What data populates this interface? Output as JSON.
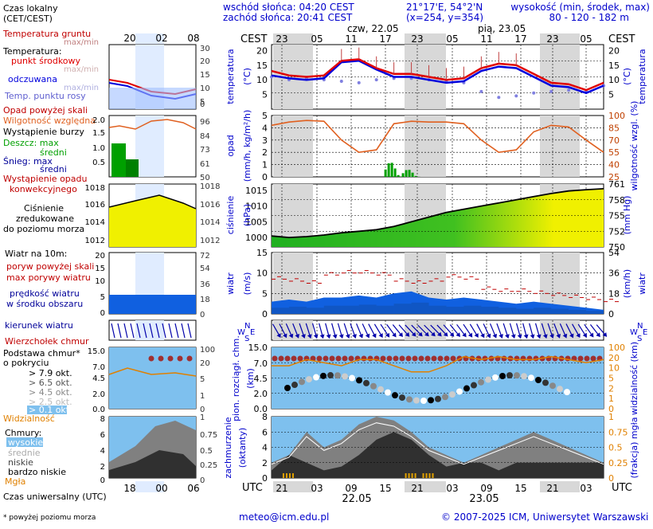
{
  "header": {
    "sunrise": "wschód słońca: 04:20 CEST",
    "sunset": "zachód słońca: 20:41 CEST",
    "coords": "21°17'E, 54°2'N",
    "grid": "(x=254, y=354)",
    "elev_title": "wysokość (min, środek, max)",
    "elev_values": "80 - 120 - 182 m",
    "cest": "CEST",
    "day1": "czw, 22.05",
    "day2": "pią, 23.05",
    "hours_top": [
      "23",
      "05",
      "11",
      "17",
      "23",
      "05",
      "11",
      "17",
      "23",
      "05"
    ],
    "utc": "UTC",
    "hours_bottom": [
      "21",
      "03",
      "09",
      "15",
      "21",
      "03",
      "09",
      "15",
      "21",
      "03"
    ],
    "date1": "22.05",
    "date2": "23.05"
  },
  "legend": {
    "local_time": "Czas lokalny",
    "local_time2": "(CET/CEST)",
    "legend_hours_top": [
      "20",
      "02",
      "08"
    ],
    "soil_temp": "Temperatura gruntu",
    "maxmin": "max/min",
    "temp": "Temperatura:",
    "mid": "punkt środkowy",
    "maxmin2": "max/min",
    "feels": "odczuwana",
    "maxmin3": "max/min",
    "dew": "Temp. punktu rosy",
    "precip_above": "Opad powyżej skali",
    "humidity": "Wilgotność względna",
    "storm": "Wystąpienie burzy",
    "rain_max": "Deszcz: max",
    "rain_mid": "średni",
    "snow_max": "Śnieg:  max",
    "snow_mid": "średni",
    "precip_conv1": "Wystąpienie opadu",
    "precip_conv2": "konwekcyjnego",
    "pressure1": "Ciśnienie",
    "pressure2": "zredukowane",
    "pressure3": "do poziomu morza",
    "wind10": "Wiatr na 10m:",
    "gust_above": "poryw powyżej skali",
    "gust_max": "max porywy wiatru",
    "wind_speed1": "prędkość wiatru",
    "wind_speed2": "w środku obszaru",
    "wind_dir": "kierunek wiatru",
    "cloud_top": "Wierzchołek chmur",
    "cloud_base1": "Podstawa chmur*",
    "cloud_base2": "o pokryciu",
    "okt79": "> 7.9 okt.",
    "okt65": "> 6.5 okt.",
    "okt45": "> 4.5 okt.",
    "okt25": "> 2.5 okt.",
    "okt01": "> 0.1 okt.",
    "visibility": "Widzialność",
    "clouds": "Chmury:",
    "high": "wysokie",
    "mid_cl": "średnie",
    "low": "niskie",
    "very_low": "bardzo niskie",
    "fog": "Mgła",
    "utc_time": "Czas uniwersalny (UTC)",
    "legend_hours_bottom": [
      "18",
      "00",
      "06"
    ],
    "footnote": "* powyżej poziomu morza"
  },
  "footer": {
    "email": "meteo@icm.edu.pl",
    "copyright": "© 2007-2025 ICM, Uniwersytet Warszawski"
  },
  "colors": {
    "temp": "#e00000",
    "feels": "#0000dd",
    "dew": "#8080e0",
    "rain": "#00a000",
    "humidity": "#e06020",
    "pressure_fill": "#f0f000",
    "wind": "#1060e0",
    "cloud_sky": "#7ec0ee",
    "night": "#d8d8d8"
  },
  "chart_data": [
    {
      "type": "line",
      "title": "temperatura",
      "ylabel": "(°C)",
      "ylim": [
        0,
        22
      ],
      "yticks": [
        "5",
        "10",
        "15",
        "20"
      ],
      "x_hours_utc": [
        21,
        0,
        3,
        6,
        9,
        12,
        15,
        18,
        21,
        0,
        3,
        6,
        9,
        12,
        15,
        18,
        21,
        0,
        3,
        6
      ],
      "series": [
        {
          "name": "punkt środkowy",
          "values": [
            13,
            11.5,
            11,
            11.5,
            16.5,
            17,
            14,
            12,
            12,
            11,
            10,
            10.5,
            14,
            15.5,
            15,
            12,
            9,
            8.5,
            6.5,
            9
          ]
        },
        {
          "name": "odczuwana",
          "values": [
            11.5,
            10.5,
            10,
            10.5,
            16,
            16.5,
            13.5,
            11,
            11,
            10,
            9,
            9.5,
            13,
            14.5,
            14,
            11,
            8,
            7.5,
            5.5,
            8
          ]
        },
        {
          "name": "Temp. punktu rosy",
          "values": [
            11,
            10,
            10.5,
            10,
            9.5,
            9,
            10,
            10.5,
            10.5,
            10,
            9.5,
            9,
            6,
            4,
            4.5,
            5.5,
            6,
            6.5,
            6,
            8
          ]
        }
      ]
    },
    {
      "type": "bar",
      "title": "opad",
      "ylabel": "(mm/h, kg/m²/h)",
      "ylim": [
        0,
        5
      ],
      "yticks": [
        "0",
        "1",
        "2",
        "3",
        "4",
        "5"
      ],
      "y2label": "wilgotność wzgl. (%)",
      "y2ticks": [
        "25",
        "40",
        "55",
        "70",
        "85",
        "100"
      ],
      "humidity": [
        88,
        92,
        94,
        93,
        70,
        55,
        58,
        90,
        93,
        92,
        92,
        90,
        70,
        55,
        58,
        80,
        88,
        86,
        70,
        55
      ],
      "precip": [
        0,
        0,
        0,
        0,
        0,
        0,
        0,
        1.2,
        0.6,
        0,
        0,
        0,
        0,
        0,
        0,
        0,
        0,
        0,
        0,
        0
      ]
    },
    {
      "type": "area",
      "title": "ciśnienie",
      "ylabel": "(hPa)",
      "ylim": [
        997,
        1017
      ],
      "yticks": [
        "1000",
        "1005",
        "1010",
        "1015"
      ],
      "y2label": "(mm Hg)",
      "y2ticks": [
        "750",
        "752",
        "755",
        "758",
        "761"
      ],
      "values": [
        1000.5,
        1000,
        1000.3,
        1000.8,
        1001.5,
        1002,
        1002.5,
        1003.5,
        1005,
        1006.5,
        1008,
        1009,
        1010,
        1011,
        1012,
        1013,
        1014,
        1014.8,
        1015.2,
        1015.5
      ]
    },
    {
      "type": "line",
      "title": "wiatr",
      "ylabel": "(m/s)",
      "ylim": [
        0,
        15
      ],
      "yticks": [
        "0",
        "5",
        "10",
        "15"
      ],
      "y2label": "(km/h)",
      "y2ticks": [
        "0",
        "18",
        "36",
        "54"
      ],
      "series": [
        {
          "name": "max porywy wiatru",
          "values": [
            8.5,
            8,
            7.5,
            9.5,
            10,
            10,
            9.5,
            8,
            7.5,
            8,
            9,
            8.5,
            6,
            5.5,
            5.5,
            5,
            4.5,
            4,
            3.5,
            3
          ]
        },
        {
          "name": "prędkość wiatru",
          "values": [
            3,
            3.5,
            3,
            4,
            4,
            4.5,
            4,
            5,
            5.5,
            4,
            3.5,
            4,
            3.5,
            3,
            2.5,
            3,
            2.5,
            2,
            1.5,
            1
          ]
        }
      ]
    },
    {
      "type": "line",
      "title": "pion. rozciągł. chm.",
      "ylabel": "(km)",
      "ylim": [
        0,
        15
      ],
      "yticks": [
        "0.0",
        "2.0",
        "4.5",
        "7.0",
        "15.0"
      ],
      "y2label": "widzialność (km)",
      "y2ticks": [
        "0",
        "1",
        "2",
        "5",
        "10",
        "20",
        "100"
      ],
      "series": [
        {
          "name": "Wierzchołek chmur",
          "values": [
            10,
            10,
            10,
            10,
            9.5,
            9.5,
            9.5,
            9.5,
            10,
            10,
            10,
            10,
            10,
            10,
            10,
            10,
            10,
            10,
            10,
            10
          ]
        },
        {
          "name": "Widzialność",
          "values": [
            7,
            7,
            8,
            7.5,
            7,
            8,
            8,
            7,
            6,
            6,
            7,
            8.5,
            8,
            8.5,
            8,
            8,
            8.5,
            8,
            7.5,
            8
          ]
        }
      ]
    },
    {
      "type": "area",
      "title": "zachmurzenie",
      "ylabel": "(oktanty)",
      "ylim": [
        0,
        8
      ],
      "yticks": [
        "0",
        "2",
        "4",
        "6",
        "8"
      ],
      "y2label": "(frakcja) mgła",
      "y2ticks": [
        "0",
        "0.25",
        "0.5",
        "0.75",
        "1"
      ],
      "series": [
        {
          "name": "wysokie",
          "values": [
            2,
            3,
            6,
            4,
            5,
            7,
            8,
            7.5,
            6,
            4,
            3,
            2,
            3,
            4,
            5,
            6,
            5,
            4,
            3,
            2
          ]
        },
        {
          "name": "niskie",
          "values": [
            1,
            3,
            2,
            1,
            1.5,
            3,
            5,
            6,
            5,
            3,
            1.5,
            2,
            2,
            1,
            2,
            2,
            2,
            2,
            2,
            2
          ]
        },
        {
          "name": "Mgła",
          "values": [
            0,
            0.05,
            0,
            0,
            0,
            0,
            0,
            0,
            0.08,
            0.05,
            0,
            0,
            0,
            0,
            0,
            0,
            0,
            0,
            0,
            0
          ]
        }
      ]
    }
  ]
}
